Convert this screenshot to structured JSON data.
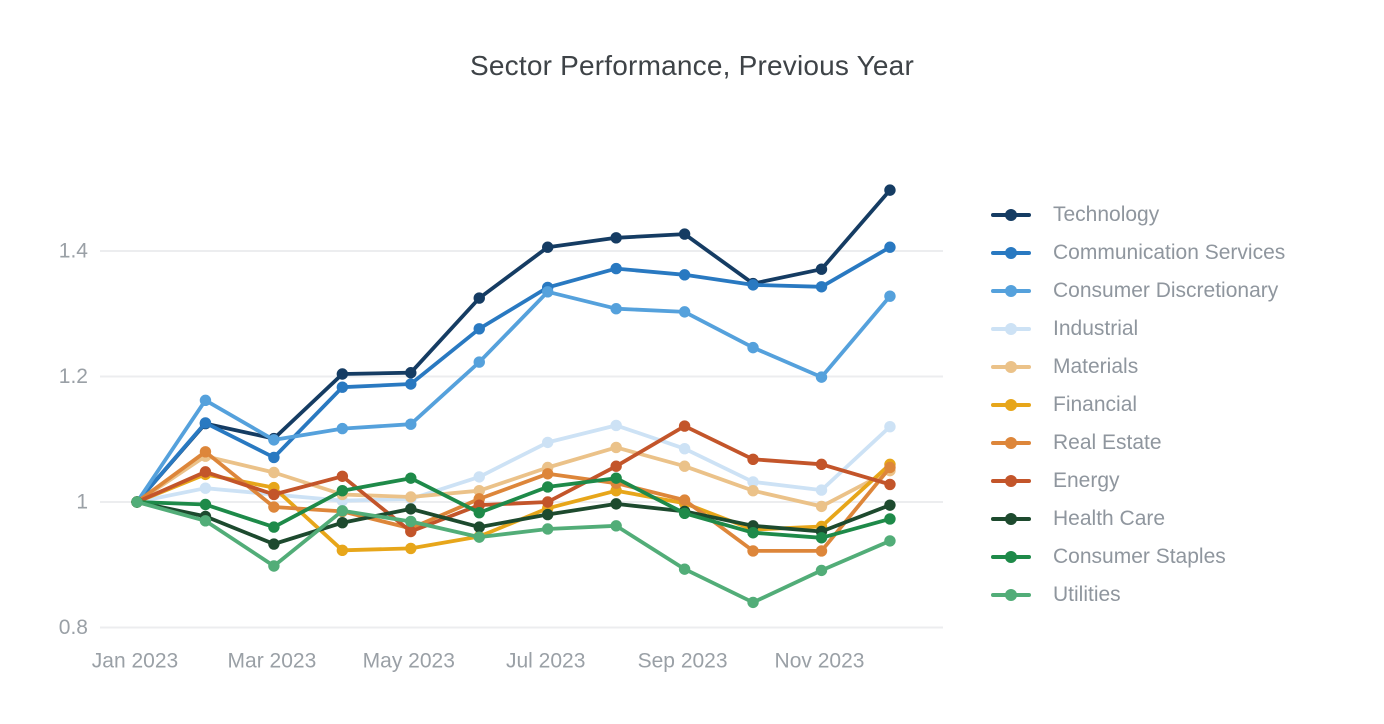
{
  "chart": {
    "title_color": "#3e4347",
    "axis_text_color": "#9aa0a6",
    "grid_color": "#ecedef",
    "legend_text_color": "#8f969e",
    "background": "#ffffff"
  },
  "chart_data": {
    "type": "line",
    "title": "Sector Performance, Previous Year",
    "x": [
      "Jan 2023",
      "Feb 2023",
      "Mar 2023",
      "Apr 2023",
      "May 2023",
      "Jun 2023",
      "Jul 2023",
      "Aug 2023",
      "Sep 2023",
      "Oct 2023",
      "Nov 2023",
      "Dec 2023"
    ],
    "x_tick_labels": [
      "Jan 2023",
      "Mar 2023",
      "May 2023",
      "Jul 2023",
      "Sep 2023",
      "Nov 2023"
    ],
    "x_tick_indices": [
      0,
      2,
      4,
      6,
      8,
      10
    ],
    "y_tick_labels": [
      "0.8",
      "1",
      "1.2",
      "1.4"
    ],
    "y_tick_values": [
      0.8,
      1.0,
      1.2,
      1.4
    ],
    "ylim": [
      0.78,
      1.53
    ],
    "grid": "horizontal",
    "legend_position": "right",
    "marker": "circle",
    "series": [
      {
        "name": "Technology",
        "color": "#153c63",
        "values": [
          1.0,
          1.125,
          1.101,
          1.204,
          1.206,
          1.325,
          1.406,
          1.421,
          1.427,
          1.348,
          1.371,
          1.497
        ]
      },
      {
        "name": "Communication Services",
        "color": "#2979c1",
        "values": [
          1.0,
          1.126,
          1.071,
          1.183,
          1.188,
          1.276,
          1.342,
          1.372,
          1.362,
          1.346,
          1.343,
          1.406
        ]
      },
      {
        "name": "Consumer Discretionary",
        "color": "#55a1dc",
        "values": [
          1.0,
          1.162,
          1.099,
          1.117,
          1.124,
          1.223,
          1.335,
          1.308,
          1.303,
          1.246,
          1.199,
          1.328
        ]
      },
      {
        "name": "Industrial",
        "color": "#cde2f5",
        "values": [
          1.0,
          1.022,
          1.012,
          1.002,
          1.005,
          1.04,
          1.095,
          1.122,
          1.085,
          1.032,
          1.019,
          1.12
        ]
      },
      {
        "name": "Materials",
        "color": "#ebc289",
        "values": [
          1.0,
          1.073,
          1.047,
          1.012,
          1.008,
          1.018,
          1.055,
          1.087,
          1.057,
          1.018,
          0.993,
          1.05
        ]
      },
      {
        "name": "Financial",
        "color": "#e7a61a",
        "values": [
          1.0,
          1.044,
          1.023,
          0.923,
          0.926,
          0.945,
          0.99,
          1.018,
          0.998,
          0.956,
          0.961,
          1.06
        ]
      },
      {
        "name": "Real Estate",
        "color": "#dd863a",
        "values": [
          1.0,
          1.08,
          0.992,
          0.985,
          0.958,
          1.005,
          1.045,
          1.03,
          1.003,
          0.922,
          0.922,
          1.055
        ]
      },
      {
        "name": "Energy",
        "color": "#c3552a",
        "values": [
          1.0,
          1.048,
          1.012,
          1.041,
          0.953,
          0.995,
          1.0,
          1.057,
          1.121,
          1.068,
          1.06,
          1.028
        ]
      },
      {
        "name": "Health Care",
        "color": "#1d4a2e",
        "values": [
          1.0,
          0.977,
          0.933,
          0.967,
          0.989,
          0.96,
          0.98,
          0.997,
          0.985,
          0.962,
          0.953,
          0.995
        ]
      },
      {
        "name": "Consumer Staples",
        "color": "#1e8a49",
        "values": [
          1.0,
          0.996,
          0.96,
          1.018,
          1.038,
          0.983,
          1.024,
          1.038,
          0.982,
          0.951,
          0.943,
          0.973
        ]
      },
      {
        "name": "Utilities",
        "color": "#52ad78",
        "values": [
          1.0,
          0.97,
          0.898,
          0.986,
          0.969,
          0.944,
          0.957,
          0.962,
          0.893,
          0.84,
          0.891,
          0.938
        ]
      }
    ]
  }
}
